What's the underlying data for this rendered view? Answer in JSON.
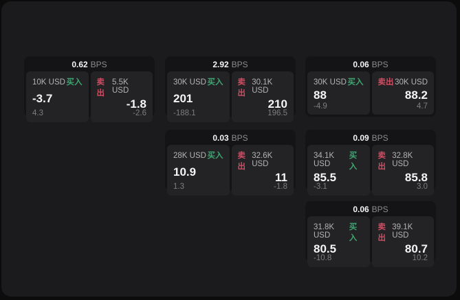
{
  "labels": {
    "bps_unit": "BPS",
    "buy": "买入",
    "sell": "卖出"
  },
  "colors": {
    "buy_green": "#3fa571",
    "sell_red": "#cf4d63",
    "panel_bg": "#232326",
    "card_bg": "#141416",
    "surface_bg": "#1b1b1d"
  },
  "cards": [
    {
      "bps": "0.62",
      "row": 1,
      "col": 1,
      "buy": {
        "size": "10K USD",
        "price": "-3.7",
        "change": "4.3"
      },
      "sell": {
        "size": "5.5K USD",
        "price": "-1.8",
        "change": "-2.6"
      }
    },
    {
      "bps": "2.92",
      "row": 1,
      "col": 2,
      "buy": {
        "size": "30K USD",
        "price": "201",
        "change": "-188.1"
      },
      "sell": {
        "size": "30.1K USD",
        "price": "210",
        "change": "196.5"
      }
    },
    {
      "bps": "0.06",
      "row": 1,
      "col": 3,
      "buy": {
        "size": "30K USD",
        "price": "88",
        "change": "-4.9"
      },
      "sell": {
        "size": "30K USD",
        "price": "88.2",
        "change": "4.7"
      }
    },
    {
      "bps": "0.03",
      "row": 2,
      "col": 2,
      "buy": {
        "size": "28K USD",
        "price": "10.9",
        "change": "1.3"
      },
      "sell": {
        "size": "32.6K USD",
        "price": "11",
        "change": "-1.8"
      }
    },
    {
      "bps": "0.09",
      "row": 2,
      "col": 3,
      "buy": {
        "size": "34.1K USD",
        "price": "85.5",
        "change": "-3.1"
      },
      "sell": {
        "size": "32.8K USD",
        "price": "85.8",
        "change": "3.0"
      }
    },
    {
      "bps": "0.06",
      "row": 3,
      "col": 3,
      "buy": {
        "size": "31.8K USD",
        "price": "80.5",
        "change": "-10.8"
      },
      "sell": {
        "size": "39.1K USD",
        "price": "80.7",
        "change": "10.2"
      }
    }
  ]
}
